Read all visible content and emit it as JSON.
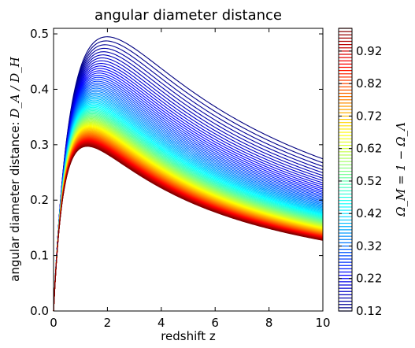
{
  "chart_data": {
    "type": "line",
    "title": "angular diameter distance",
    "xlabel": "redshift z",
    "ylabel_prefix": "angular diameter distance: ",
    "ylabel_math": "D_A / D_H",
    "xlim": [
      0,
      10
    ],
    "ylim": [
      0,
      0.51
    ],
    "xticks": [
      0,
      2,
      4,
      6,
      8,
      10
    ],
    "xtick_labels": [
      "0",
      "2",
      "4",
      "6",
      "8",
      "10"
    ],
    "yticks": [
      0.0,
      0.1,
      0.2,
      0.3,
      0.4,
      0.5
    ],
    "ytick_labels": [
      "0.0",
      "0.1",
      "0.2",
      "0.3",
      "0.4",
      "0.5"
    ],
    "grid": false,
    "colormap": "jet",
    "series_parameter": "Omega_M = 1 - Omega_Lambda",
    "omega_m_values": [
      0.12,
      0.13,
      0.14,
      0.15,
      0.16,
      0.17,
      0.18,
      0.19,
      0.2,
      0.21,
      0.22,
      0.23,
      0.24,
      0.25,
      0.26,
      0.27,
      0.28,
      0.29,
      0.3,
      0.31,
      0.32,
      0.33,
      0.34,
      0.35,
      0.36,
      0.37,
      0.38,
      0.39,
      0.4,
      0.41,
      0.42,
      0.43,
      0.44,
      0.45,
      0.46,
      0.47,
      0.48,
      0.49,
      0.5,
      0.51,
      0.52,
      0.53,
      0.54,
      0.55,
      0.56,
      0.57,
      0.58,
      0.59,
      0.6,
      0.61,
      0.62,
      0.63,
      0.64,
      0.65,
      0.66,
      0.67,
      0.68,
      0.69,
      0.7,
      0.71,
      0.72,
      0.73,
      0.74,
      0.75,
      0.76,
      0.77,
      0.78,
      0.79,
      0.8,
      0.81,
      0.82,
      0.83,
      0.84,
      0.85,
      0.86,
      0.87,
      0.88,
      0.89,
      0.9,
      0.91,
      0.92,
      0.93,
      0.94,
      0.95,
      0.96,
      0.97,
      0.98,
      0.99
    ],
    "colorbar": {
      "label": "Ω_M = 1 − Ω_Λ",
      "range": [
        0.12,
        0.99
      ],
      "ticks": [
        0.12,
        0.22,
        0.32,
        0.42,
        0.52,
        0.62,
        0.72,
        0.82,
        0.92
      ],
      "tick_labels": [
        "0.12",
        "0.22",
        "0.32",
        "0.42",
        "0.52",
        "0.62",
        "0.72",
        "0.82",
        "0.92"
      ]
    }
  }
}
